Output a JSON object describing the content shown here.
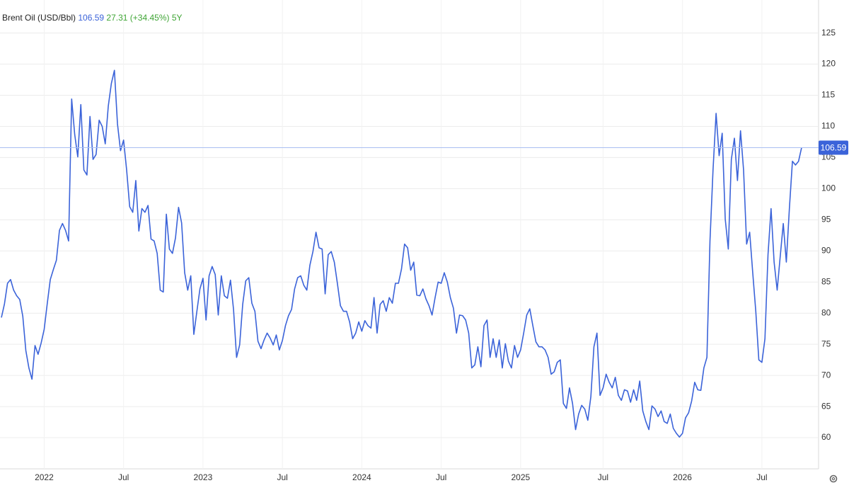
{
  "header": {
    "title": "Brent Oil (USD/Bbl)",
    "change": 27.31,
    "change_label": "(+34.45%)",
    "period": "5Y"
  },
  "chart_data": {
    "type": "line",
    "categories": [
      null,
      null,
      null,
      null,
      null,
      null,
      null,
      null,
      null,
      null,
      null,
      null,
      null,
      null,
      "2022",
      null,
      null,
      null,
      null,
      null,
      null,
      null,
      null,
      null,
      null,
      null,
      null,
      null,
      null,
      null,
      null,
      null,
      null,
      null,
      null,
      null,
      null,
      null,
      null,
      null,
      "Jul",
      null,
      null,
      null,
      null,
      null,
      null,
      null,
      null,
      null,
      null,
      null,
      null,
      null,
      null,
      null,
      null,
      null,
      null,
      null,
      null,
      null,
      null,
      null,
      null,
      null,
      "2023",
      null,
      null,
      null,
      null,
      null,
      null,
      null,
      null,
      null,
      null,
      null,
      null,
      null,
      null,
      null,
      null,
      null,
      null,
      null,
      null,
      null,
      null,
      null,
      null,
      null,
      "Jul",
      null,
      null,
      null,
      null,
      null,
      null,
      null,
      null,
      null,
      null,
      null,
      null,
      null,
      null,
      null,
      null,
      null,
      null,
      null,
      null,
      null,
      null,
      null,
      null,
      null,
      "2024",
      null,
      null,
      null,
      null,
      null,
      null,
      null,
      null,
      null,
      null,
      null,
      null,
      null,
      null,
      null,
      null,
      null,
      null,
      null,
      null,
      null,
      null,
      null,
      null,
      null,
      "Jul",
      null,
      null,
      null,
      null,
      null,
      null,
      null,
      null,
      null,
      null,
      null,
      null,
      null,
      null,
      null,
      null,
      null,
      null,
      null,
      null,
      null,
      null,
      null,
      null,
      null,
      "2025",
      null,
      null,
      null,
      null,
      null,
      null,
      null,
      null,
      null,
      null,
      null,
      null,
      null,
      null,
      null,
      null,
      null,
      null,
      null,
      null,
      null,
      null,
      null,
      null,
      null,
      null,
      "Jul",
      null,
      null,
      null,
      null,
      null,
      null,
      null,
      null,
      null,
      null,
      null,
      null,
      null,
      null,
      null,
      null,
      null,
      null,
      null,
      null,
      null,
      null,
      null,
      null,
      null,
      "2026",
      null,
      null,
      null,
      null,
      null,
      null,
      null,
      null,
      null,
      null,
      null,
      null,
      null,
      null,
      null,
      null,
      null,
      null,
      null,
      null,
      null,
      null,
      null,
      null,
      null,
      "Jul",
      null,
      null,
      null,
      null,
      null,
      null,
      null,
      null,
      null,
      null,
      null,
      null,
      null
    ],
    "series": [
      {
        "name": "Brent Oil (USD/Bbl)",
        "color": "#3b63d9",
        "values": [
          79.3,
          81.5,
          84.8,
          85.4,
          83.7,
          82.8,
          82.2,
          79.5,
          74,
          71.2,
          69.4,
          74.8,
          73.4,
          75.2,
          77.4,
          81.5,
          85.4,
          87,
          88.5,
          93.3,
          94.4,
          93.3,
          91.6,
          114.4,
          108.7,
          105.1,
          113.5,
          103,
          102.2,
          111.6,
          104.7,
          105.5,
          111,
          110,
          107.2,
          113.3,
          116.9,
          119,
          110.4,
          106.1,
          107.8,
          103,
          97.1,
          96.2,
          101.3,
          93.2,
          96.8,
          96.2,
          97.3,
          91.9,
          91.6,
          89.6,
          83.7,
          83.4,
          95.9,
          90.3,
          89.6,
          92.1,
          97,
          94.5,
          86.5,
          83.7,
          86,
          76.6,
          80.3,
          83.9,
          85.6,
          78.9,
          86,
          87.5,
          86.2,
          79.7,
          86,
          82.8,
          82.4,
          85.3,
          80.6,
          72.9,
          74.9,
          81.4,
          85.2,
          85.7,
          81.6,
          80.3,
          75.5,
          74.3,
          75.7,
          76.8,
          76,
          74.9,
          76.5,
          74.1,
          75.6,
          78,
          79.6,
          80.6,
          83.9,
          85.7,
          86,
          84.5,
          83.7,
          87.7,
          89.9,
          93,
          90.5,
          90.3,
          83.1,
          89.4,
          89.9,
          88.2,
          84.8,
          81.2,
          80.3,
          80.3,
          78.6,
          75.9,
          76.8,
          78.6,
          77.1,
          78.8,
          78,
          77.6,
          82.5,
          76.8,
          81.4,
          82,
          80.3,
          82.5,
          81.6,
          84.8,
          84.8,
          87.1,
          91.1,
          90.5,
          86.9,
          88.2,
          82.9,
          82.8,
          83.9,
          82.3,
          81.2,
          79.7,
          82.5,
          85,
          84.8,
          86.5,
          85,
          82.5,
          80.8,
          76.8,
          79.7,
          79.6,
          78.9,
          76.8,
          71.2,
          71.7,
          74.6,
          71.4,
          78,
          78.9,
          72.9,
          75.9,
          72.9,
          75.7,
          71.2,
          75.1,
          72.3,
          71.2,
          74.8,
          72.9,
          74.1,
          76.8,
          79.7,
          80.7,
          78,
          75.4,
          74.6,
          74.6,
          74.1,
          72.9,
          70.2,
          70.6,
          72.1,
          72.5,
          65.5,
          64.7,
          68,
          65.5,
          61.3,
          63.8,
          65.2,
          64.6,
          62.8,
          66.6,
          74.6,
          76.8,
          66.8,
          68,
          70.2,
          68.9,
          68,
          69.7,
          66.8,
          66,
          67.7,
          67.5,
          65.7,
          67.7,
          66,
          69.1,
          64.3,
          62.6,
          61.3,
          65.1,
          64.6,
          63.4,
          64.3,
          62.6,
          62.3,
          63.8,
          61.5,
          60.7,
          60.1,
          60.7,
          63.2,
          64,
          65.9,
          68.9,
          67.7,
          67.6,
          71.2,
          72.9,
          91.6,
          103,
          112.1,
          105.3,
          108.9,
          95.1,
          90.3,
          104.7,
          108.1,
          101.3,
          109.3,
          103,
          91.1,
          93,
          86.5,
          80.3,
          72.5,
          72.1,
          75.9,
          89.4,
          96.8,
          88.2,
          83.7,
          89.1,
          94.4,
          88.2,
          96.8,
          104.4,
          103.8,
          104.4,
          106.59
        ]
      }
    ],
    "ylim": [
      55,
      130.3
    ],
    "yticks": [
      60,
      65,
      70,
      75,
      80,
      85,
      90,
      95,
      100,
      105,
      110,
      115,
      120,
      125
    ],
    "grid": true
  }
}
